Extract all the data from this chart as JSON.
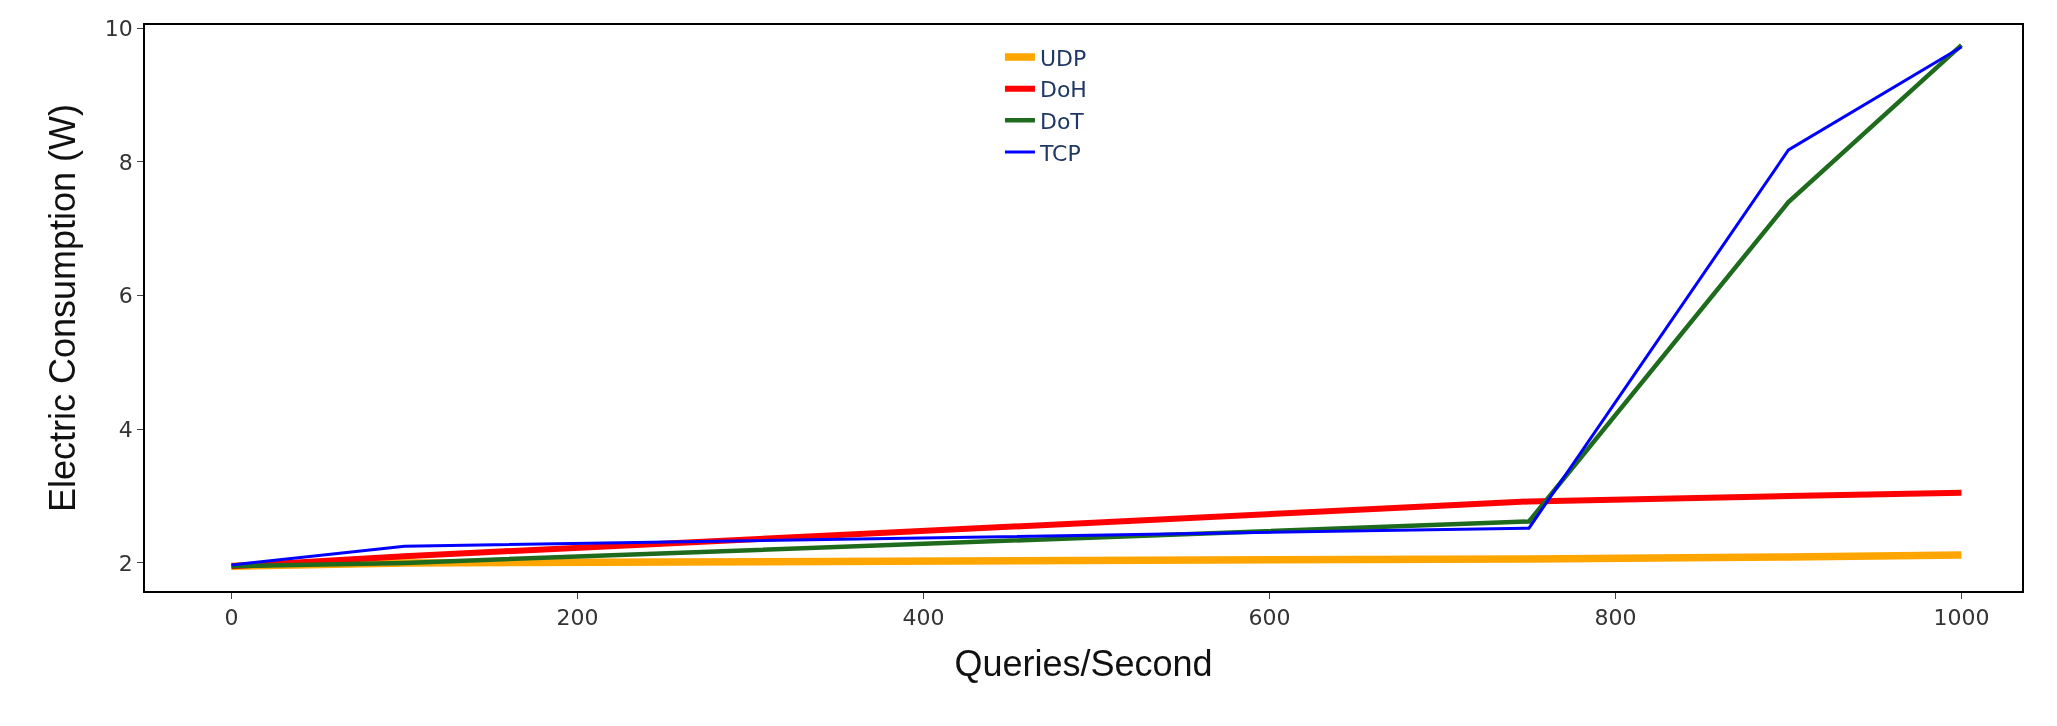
{
  "chart_data": {
    "type": "line",
    "xlabel": "Queries/Second",
    "ylabel": "Electric Consumption (W)",
    "x": [
      0,
      100,
      750,
      900,
      1000
    ],
    "series": [
      {
        "name": "UDP",
        "color": "#ffa500",
        "values": [
          1.95,
          2.0,
          2.06,
          2.09,
          2.12
        ]
      },
      {
        "name": "DoH",
        "color": "#ff0000",
        "values": [
          1.95,
          2.1,
          2.92,
          3.0,
          3.05
        ]
      },
      {
        "name": "DoT",
        "color": "#1e6b1e",
        "values": [
          1.95,
          2.0,
          2.62,
          7.4,
          9.75
        ]
      },
      {
        "name": "TCP",
        "color": "#0000ff",
        "values": [
          1.97,
          2.25,
          2.52,
          8.18,
          9.72
        ]
      }
    ],
    "xlim": [
      -50,
      1035
    ],
    "xticks": [
      0,
      200,
      400,
      600,
      800,
      1000
    ],
    "ylim": [
      1.58,
      10.05
    ],
    "yticks": [
      2,
      4,
      6,
      8,
      10
    ],
    "grid": false,
    "legend": "top",
    "marker": "none",
    "line_style": "solid"
  }
}
